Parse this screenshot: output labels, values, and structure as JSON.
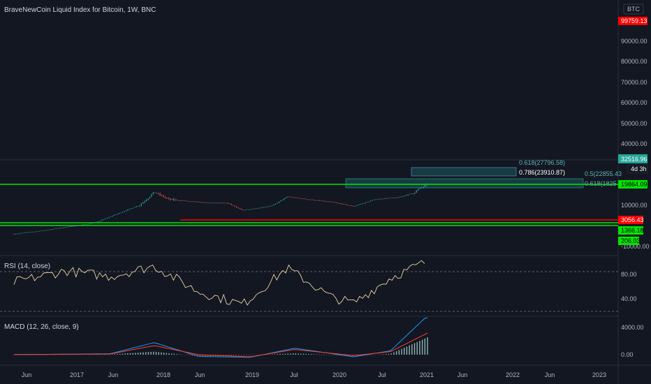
{
  "header": {
    "title": "BraveNewCoin Liquid Index for Bitcoin, 1W, BNC",
    "currency": "BTC"
  },
  "colors": {
    "background": "#131722",
    "up": "#26a69a",
    "down": "#ef5350",
    "support_line": "#00e600",
    "red_line": "#ff0000",
    "rsi_line": "#e6d3a3",
    "macd_line": "#2196f3",
    "signal_line": "#f44336"
  },
  "price_axis": {
    "scale": "log",
    "ticks": [
      "90000.00",
      "80000.00",
      "70000.00",
      "60000.00",
      "50000.00",
      "40000.00",
      "10000.00",
      "-10000.00"
    ],
    "tags": [
      {
        "text": "99759.13",
        "style": "red"
      },
      {
        "text": "32516.96",
        "style": "teal"
      },
      {
        "text": "4d 3h",
        "style": "dark"
      },
      {
        "text": "19864.09",
        "style": "green"
      },
      {
        "text": "3056.43",
        "style": "red"
      },
      {
        "text": "1366.18",
        "style": "green"
      },
      {
        "text": "206.03",
        "style": "green"
      }
    ]
  },
  "fib_labels": [
    {
      "text": "0.618(27796.58)",
      "emph": false
    },
    {
      "text": "0.786(23910.87)",
      "emph": true
    },
    {
      "text": "0.5(22855.43",
      "emph": false
    },
    {
      "text": "0.618(1825",
      "emph": false
    }
  ],
  "rsi": {
    "label": "RSI (14, close)",
    "ticks": [
      "80.00",
      "40.00"
    ]
  },
  "macd": {
    "label": "MACD (12, 26, close, 9)",
    "ticks": [
      "4000.00",
      "0.00"
    ]
  },
  "time_axis": {
    "labels": [
      "Jun",
      "2017",
      "Jun",
      "2018",
      "Jun",
      "2019",
      "Jul",
      "2020",
      "Jul",
      "2021",
      "Jun",
      "2022",
      "Jun",
      "2023"
    ]
  },
  "chart_data": {
    "type": "candlestick",
    "title": "BraveNewCoin Liquid Index for Bitcoin, 1W, BNC",
    "y_scale": "log",
    "x_range": [
      "2016-05",
      "2023-01"
    ],
    "series": [
      {
        "name": "price",
        "x": [
          "2016-05",
          "2016-09",
          "2017-01",
          "2017-04",
          "2017-07",
          "2017-10",
          "2017-12",
          "2018-02",
          "2018-04",
          "2018-07",
          "2018-10",
          "2018-12",
          "2019-04",
          "2019-06",
          "2019-09",
          "2019-12",
          "2020-03",
          "2020-06",
          "2020-09",
          "2020-11",
          "2020-12",
          "2021-01"
        ],
        "y": [
          450,
          610,
          900,
          1200,
          2600,
          5500,
          17000,
          9000,
          8000,
          6800,
          6500,
          3500,
          5300,
          11500,
          9000,
          7200,
          5000,
          9300,
          10700,
          15800,
          24000,
          32516.96
        ]
      }
    ],
    "horizontal_levels": [
      {
        "value": 19864.09,
        "kind": "support"
      },
      {
        "value": 3056.43,
        "kind": "resistance"
      },
      {
        "value": 1366.18,
        "kind": "support"
      },
      {
        "value": 206.03,
        "kind": "support"
      }
    ],
    "fib_levels": [
      {
        "ratio": 0.618,
        "value": 27796.58
      },
      {
        "ratio": 0.786,
        "value": 23910.87
      },
      {
        "ratio": 0.5,
        "value": 22855.43
      }
    ],
    "rsi": {
      "x": [
        "2016-05",
        "2016-12",
        "2017-06",
        "2017-12",
        "2018-06",
        "2018-12",
        "2019-06",
        "2019-12",
        "2020-03",
        "2020-08",
        "2021-01"
      ],
      "y": [
        62,
        78,
        70,
        85,
        48,
        30,
        82,
        40,
        32,
        68,
        92
      ]
    },
    "macd": {
      "x": [
        "2016-05",
        "2017-06",
        "2017-12",
        "2018-06",
        "2019-01",
        "2019-07",
        "2020-03",
        "2020-08",
        "2021-01"
      ],
      "macd": [
        20,
        200,
        2800,
        -400,
        -600,
        1500,
        -500,
        900,
        9000
      ],
      "signal": [
        15,
        150,
        2100,
        0,
        -500,
        1200,
        -200,
        700,
        5000
      ]
    }
  }
}
